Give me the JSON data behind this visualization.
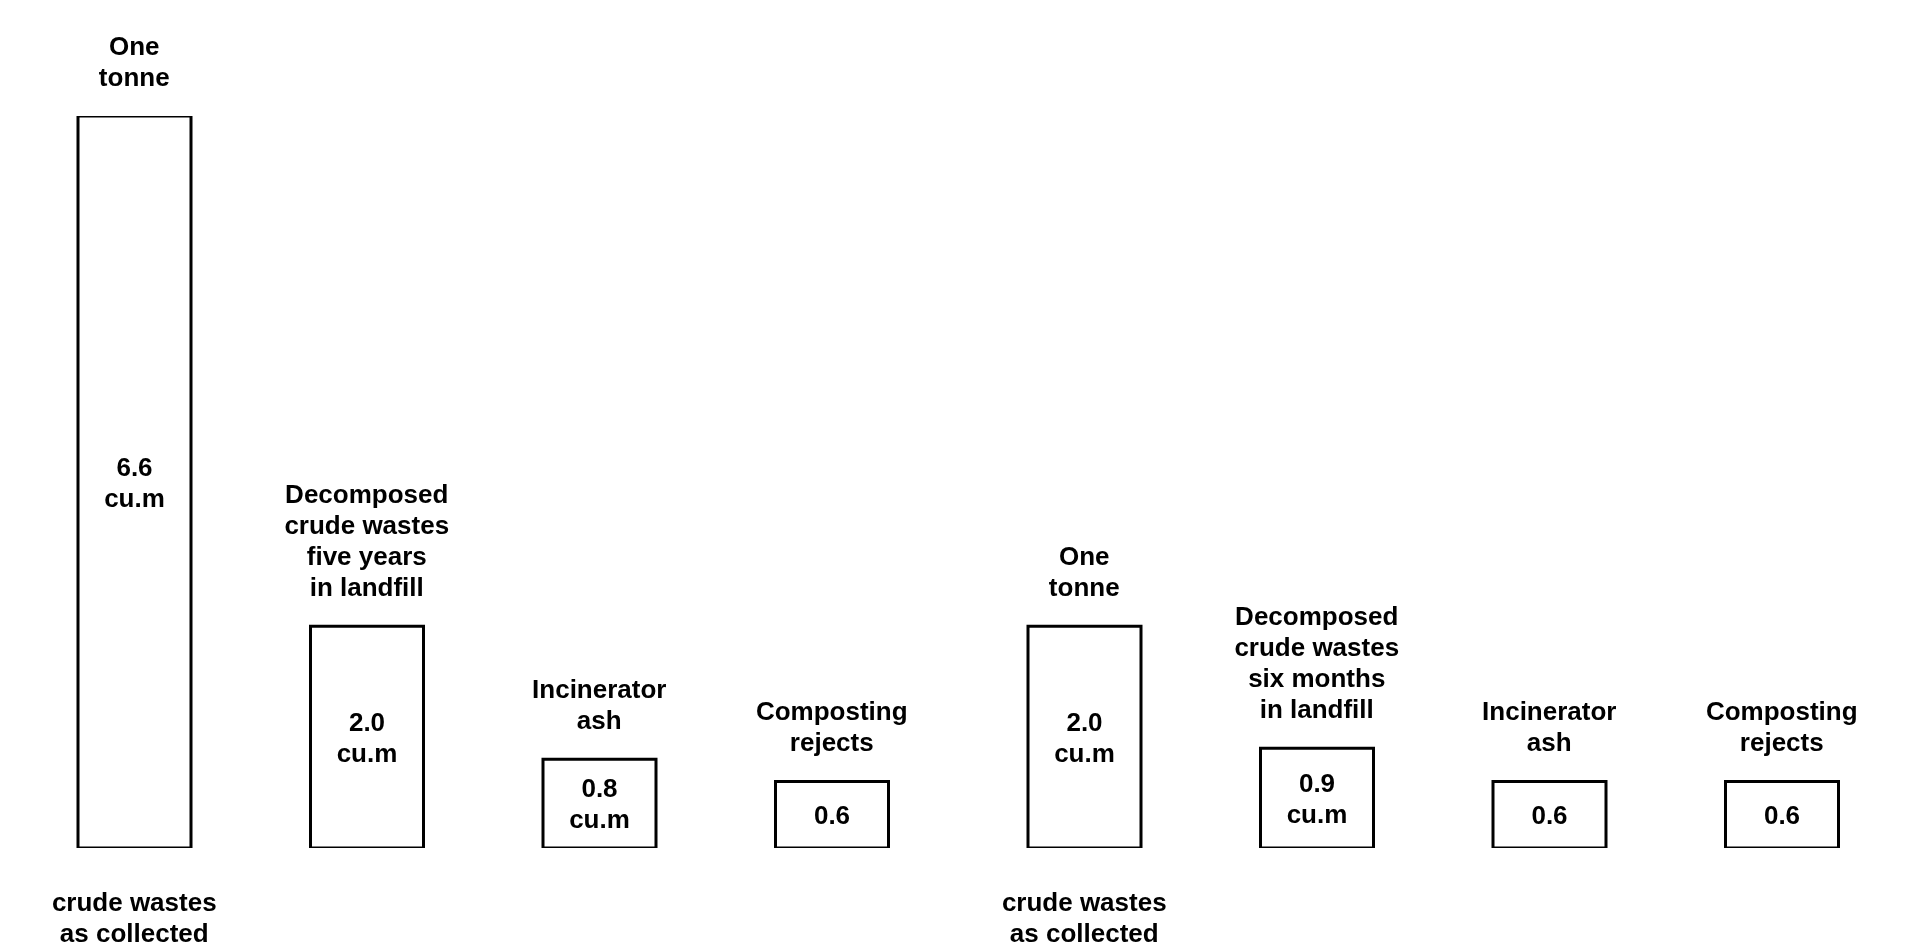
{
  "chart_data": [
    {
      "type": "bar",
      "categories": [
        "crude wastes as collected",
        "Decomposed crude wastes five years in landfill",
        "Incinerator ash",
        "Composting rejects"
      ],
      "values": [
        6.6,
        2.0,
        0.8,
        0.6
      ],
      "value_labels": [
        "6.6 cu.m",
        "2.0 cu.m",
        "0.8 cu.m",
        "0.6"
      ],
      "color": "#ffffff",
      "annotations": [
        {
          "text": "One tonne",
          "x": "crude wastes as collected",
          "y": 6.6
        }
      ]
    },
    {
      "type": "bar",
      "categories": [
        "crude wastes as collected",
        "Decomposed crude wastes six months in landfill",
        "Incinerator ash",
        "Composting rejects"
      ],
      "values": [
        2.0,
        0.9,
        0.6,
        0.6
      ],
      "value_labels": [
        "2.0 cu.m",
        "0.9 cu.m",
        "0.6",
        "0.6"
      ],
      "color": "#ffffff",
      "annotations": [
        {
          "text": "One tonne",
          "x": "crude wastes as collected",
          "y": 2.0
        }
      ]
    }
  ]
}
